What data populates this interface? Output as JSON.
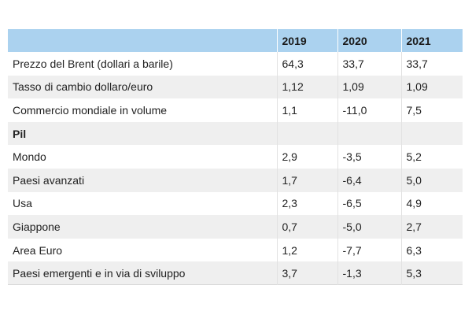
{
  "table": {
    "headers": [
      "",
      "2019",
      "2020",
      "2021"
    ],
    "rows": [
      {
        "label": "Prezzo del Brent (dollari a barile)",
        "v2019": "64,3",
        "v2020": "33,7",
        "v2021": "33,7"
      },
      {
        "label": "Tasso di cambio dollaro/euro",
        "v2019": "1,12",
        "v2020": "1,09",
        "v2021": "1,09"
      },
      {
        "label": "Commercio mondiale in volume",
        "v2019": "1,1",
        "v2020": "-11,0",
        "v2021": "7,5"
      },
      {
        "label": "Pil",
        "v2019": "",
        "v2020": "",
        "v2021": ""
      },
      {
        "label": "Mondo",
        "v2019": "2,9",
        "v2020": "-3,5",
        "v2021": "5,2"
      },
      {
        "label": "Paesi avanzati",
        "v2019": "1,7",
        "v2020": "-6,4",
        "v2021": "5,0"
      },
      {
        "label": "Usa",
        "v2019": "2,3",
        "v2020": "-6,5",
        "v2021": "4,9"
      },
      {
        "label": "Giappone",
        "v2019": "0,7",
        "v2020": "-5,0",
        "v2021": "2,7"
      },
      {
        "label": "Area Euro",
        "v2019": "1,2",
        "v2020": "-7,7",
        "v2021": "6,3"
      },
      {
        "label": "Paesi emergenti e in via di sviluppo",
        "v2019": "3,7",
        "v2020": "-1,3",
        "v2021": "5,3"
      }
    ]
  },
  "colors": {
    "header_bg": "#abd2ef",
    "stripe_bg": "#efefef"
  }
}
